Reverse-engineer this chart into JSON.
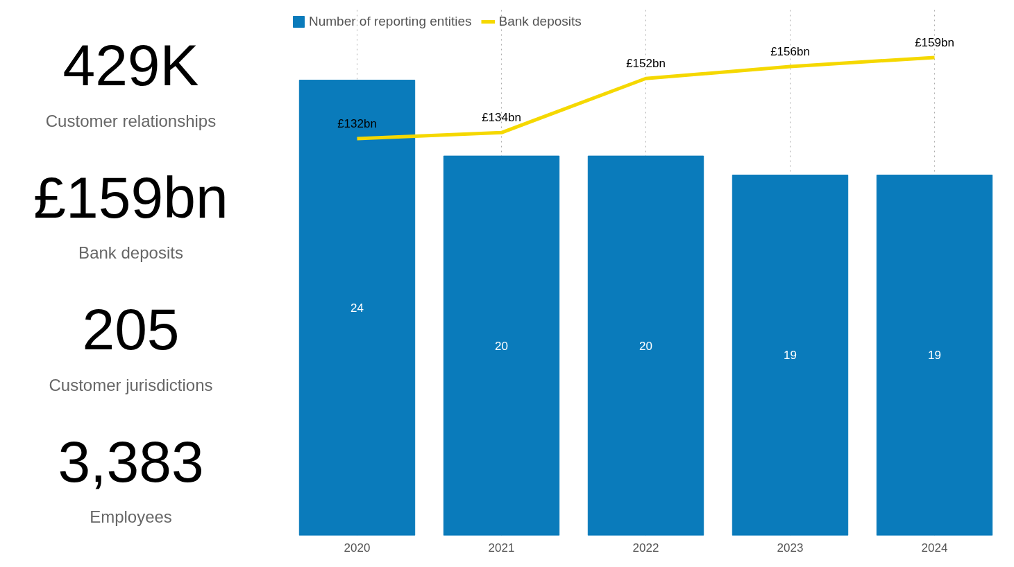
{
  "chart_data": [
    {
      "type": "other",
      "annotations": [
        "429K",
        "Customer relationships",
        "£159bn",
        "Bank deposits",
        "205",
        "Customer jurisdictions",
        "3,383",
        "Employees"
      ]
    },
    {
      "type": "bar",
      "categories": [
        "2020",
        "2021",
        "2022",
        "2023",
        "2024"
      ],
      "legend": "top left",
      "grid": "x",
      "series": [
        {
          "name": "Number of reporting entities",
          "type": "bar",
          "color": "#0a7bbb",
          "values": [
            24,
            20,
            20,
            19,
            19
          ],
          "value_labels": [
            "24",
            "20",
            "20",
            "19",
            "19"
          ]
        },
        {
          "name": "Bank deposits",
          "type": "line",
          "axis": "y2",
          "color": "#f5d800",
          "values": [
            132,
            134,
            152,
            156,
            159
          ],
          "value_labels": [
            "£132bn",
            "£134bn",
            "£152bn",
            "£156bn",
            "£159bn"
          ]
        }
      ]
    }
  ]
}
